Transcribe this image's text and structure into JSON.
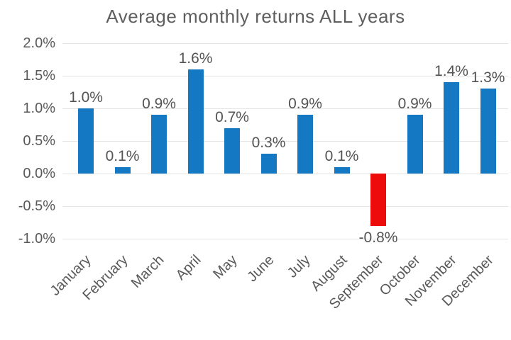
{
  "chart_data": {
    "type": "bar",
    "title": "Average monthly returns ALL years",
    "categories": [
      "January",
      "February",
      "March",
      "April",
      "May",
      "June",
      "July",
      "August",
      "September",
      "October",
      "November",
      "December"
    ],
    "values": [
      1.0,
      0.1,
      0.9,
      1.6,
      0.7,
      0.3,
      0.9,
      0.1,
      -0.8,
      0.9,
      1.4,
      1.3
    ],
    "value_labels": [
      "1.0%",
      "0.1%",
      "0.9%",
      "1.6%",
      "0.7%",
      "0.3%",
      "0.9%",
      "0.1%",
      "-0.8%",
      "0.9%",
      "1.4%",
      "1.3%"
    ],
    "xlabel": "",
    "ylabel": "",
    "ylim": [
      -1.0,
      2.0
    ],
    "ytick_values": [
      2.0,
      1.5,
      1.0,
      0.5,
      0.0,
      -0.5,
      -1.0
    ],
    "ytick_labels": [
      "2.0%",
      "1.5%",
      "1.0%",
      "0.5%",
      "0.0%",
      "-0.5%",
      "-1.0%"
    ],
    "grid": true,
    "legend": false,
    "colors": {
      "positive_bar": "#1478c3",
      "negative_bar": "#ee0b0b"
    }
  }
}
